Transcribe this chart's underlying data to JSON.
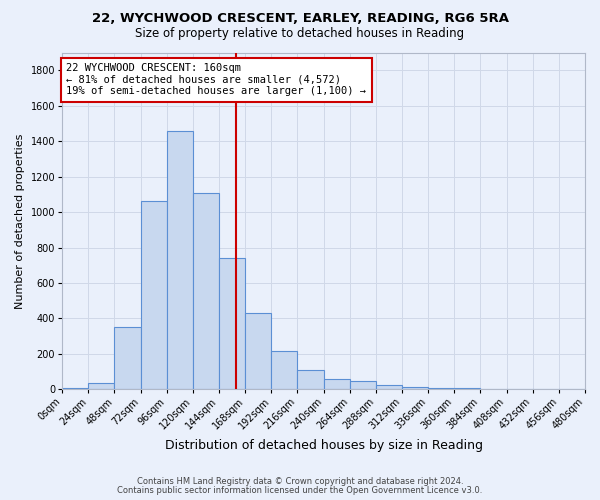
{
  "title_line1": "22, WYCHWOOD CRESCENT, EARLEY, READING, RG6 5RA",
  "title_line2": "Size of property relative to detached houses in Reading",
  "xlabel": "Distribution of detached houses by size in Reading",
  "ylabel": "Number of detached properties",
  "bin_edges": [
    0,
    24,
    48,
    72,
    96,
    120,
    144,
    168,
    192,
    216,
    240,
    264,
    288,
    312,
    336,
    360,
    384,
    408,
    432,
    456,
    480
  ],
  "bar_heights": [
    10,
    35,
    350,
    1060,
    1460,
    1110,
    740,
    430,
    215,
    110,
    58,
    45,
    25,
    15,
    10,
    7,
    4,
    3,
    2,
    1
  ],
  "bar_color": "#c8d8ef",
  "bar_edge_color": "#5b8fd4",
  "property_size": 160,
  "vline_color": "#cc0000",
  "ylim": [
    0,
    1900
  ],
  "yticks": [
    0,
    200,
    400,
    600,
    800,
    1000,
    1200,
    1400,
    1600,
    1800
  ],
  "annotation_title": "22 WYCHWOOD CRESCENT: 160sqm",
  "annotation_line2": "← 81% of detached houses are smaller (4,572)",
  "annotation_line3": "19% of semi-detached houses are larger (1,100) →",
  "annotation_box_color": "#ffffff",
  "annotation_box_edge_color": "#cc0000",
  "footer_line1": "Contains HM Land Registry data © Crown copyright and database right 2024.",
  "footer_line2": "Contains public sector information licensed under the Open Government Licence v3.0.",
  "background_color": "#eaf0fb",
  "axes_background_color": "#eaf0fb",
  "grid_color": "#d0d8e8",
  "title_fontsize": 9.5,
  "subtitle_fontsize": 8.5,
  "xlabel_fontsize": 9,
  "ylabel_fontsize": 8,
  "tick_fontsize": 7,
  "footer_fontsize": 6,
  "annotation_fontsize": 7.5
}
